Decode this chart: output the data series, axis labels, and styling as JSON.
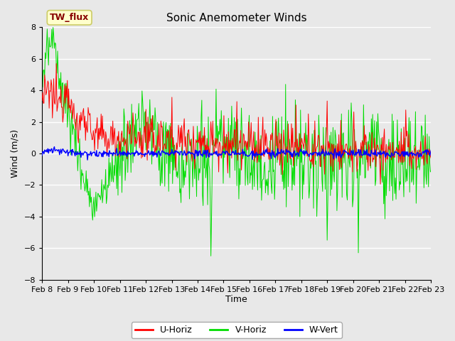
{
  "title": "Sonic Anemometer Winds",
  "xlabel": "Time",
  "ylabel": "Wind (m/s)",
  "ylim": [
    -8,
    8
  ],
  "yticks": [
    -8,
    -6,
    -4,
    -2,
    0,
    2,
    4,
    6,
    8
  ],
  "xtick_labels": [
    "Feb 8",
    "Feb 9",
    "Feb 10",
    "Feb 11",
    "Feb 12",
    "Feb 13",
    "Feb 14",
    "Feb 15",
    "Feb 16",
    "Feb 17",
    "Feb 18",
    "Feb 19",
    "Feb 20",
    "Feb 21",
    "Feb 22",
    "Feb 23"
  ],
  "n_days": 15,
  "n_points": 600,
  "station_label": "TW_flux",
  "colors": {
    "U": "#ff0000",
    "V": "#00dd00",
    "W": "#0000ff",
    "background": "#e8e8e8",
    "fig_background": "#e8e8e8",
    "station_box_bg": "#ffffcc",
    "station_box_edge": "#cccc00"
  },
  "legend_labels": [
    "U-Horiz",
    "V-Horiz",
    "W-Vert"
  ],
  "seed": 12345
}
